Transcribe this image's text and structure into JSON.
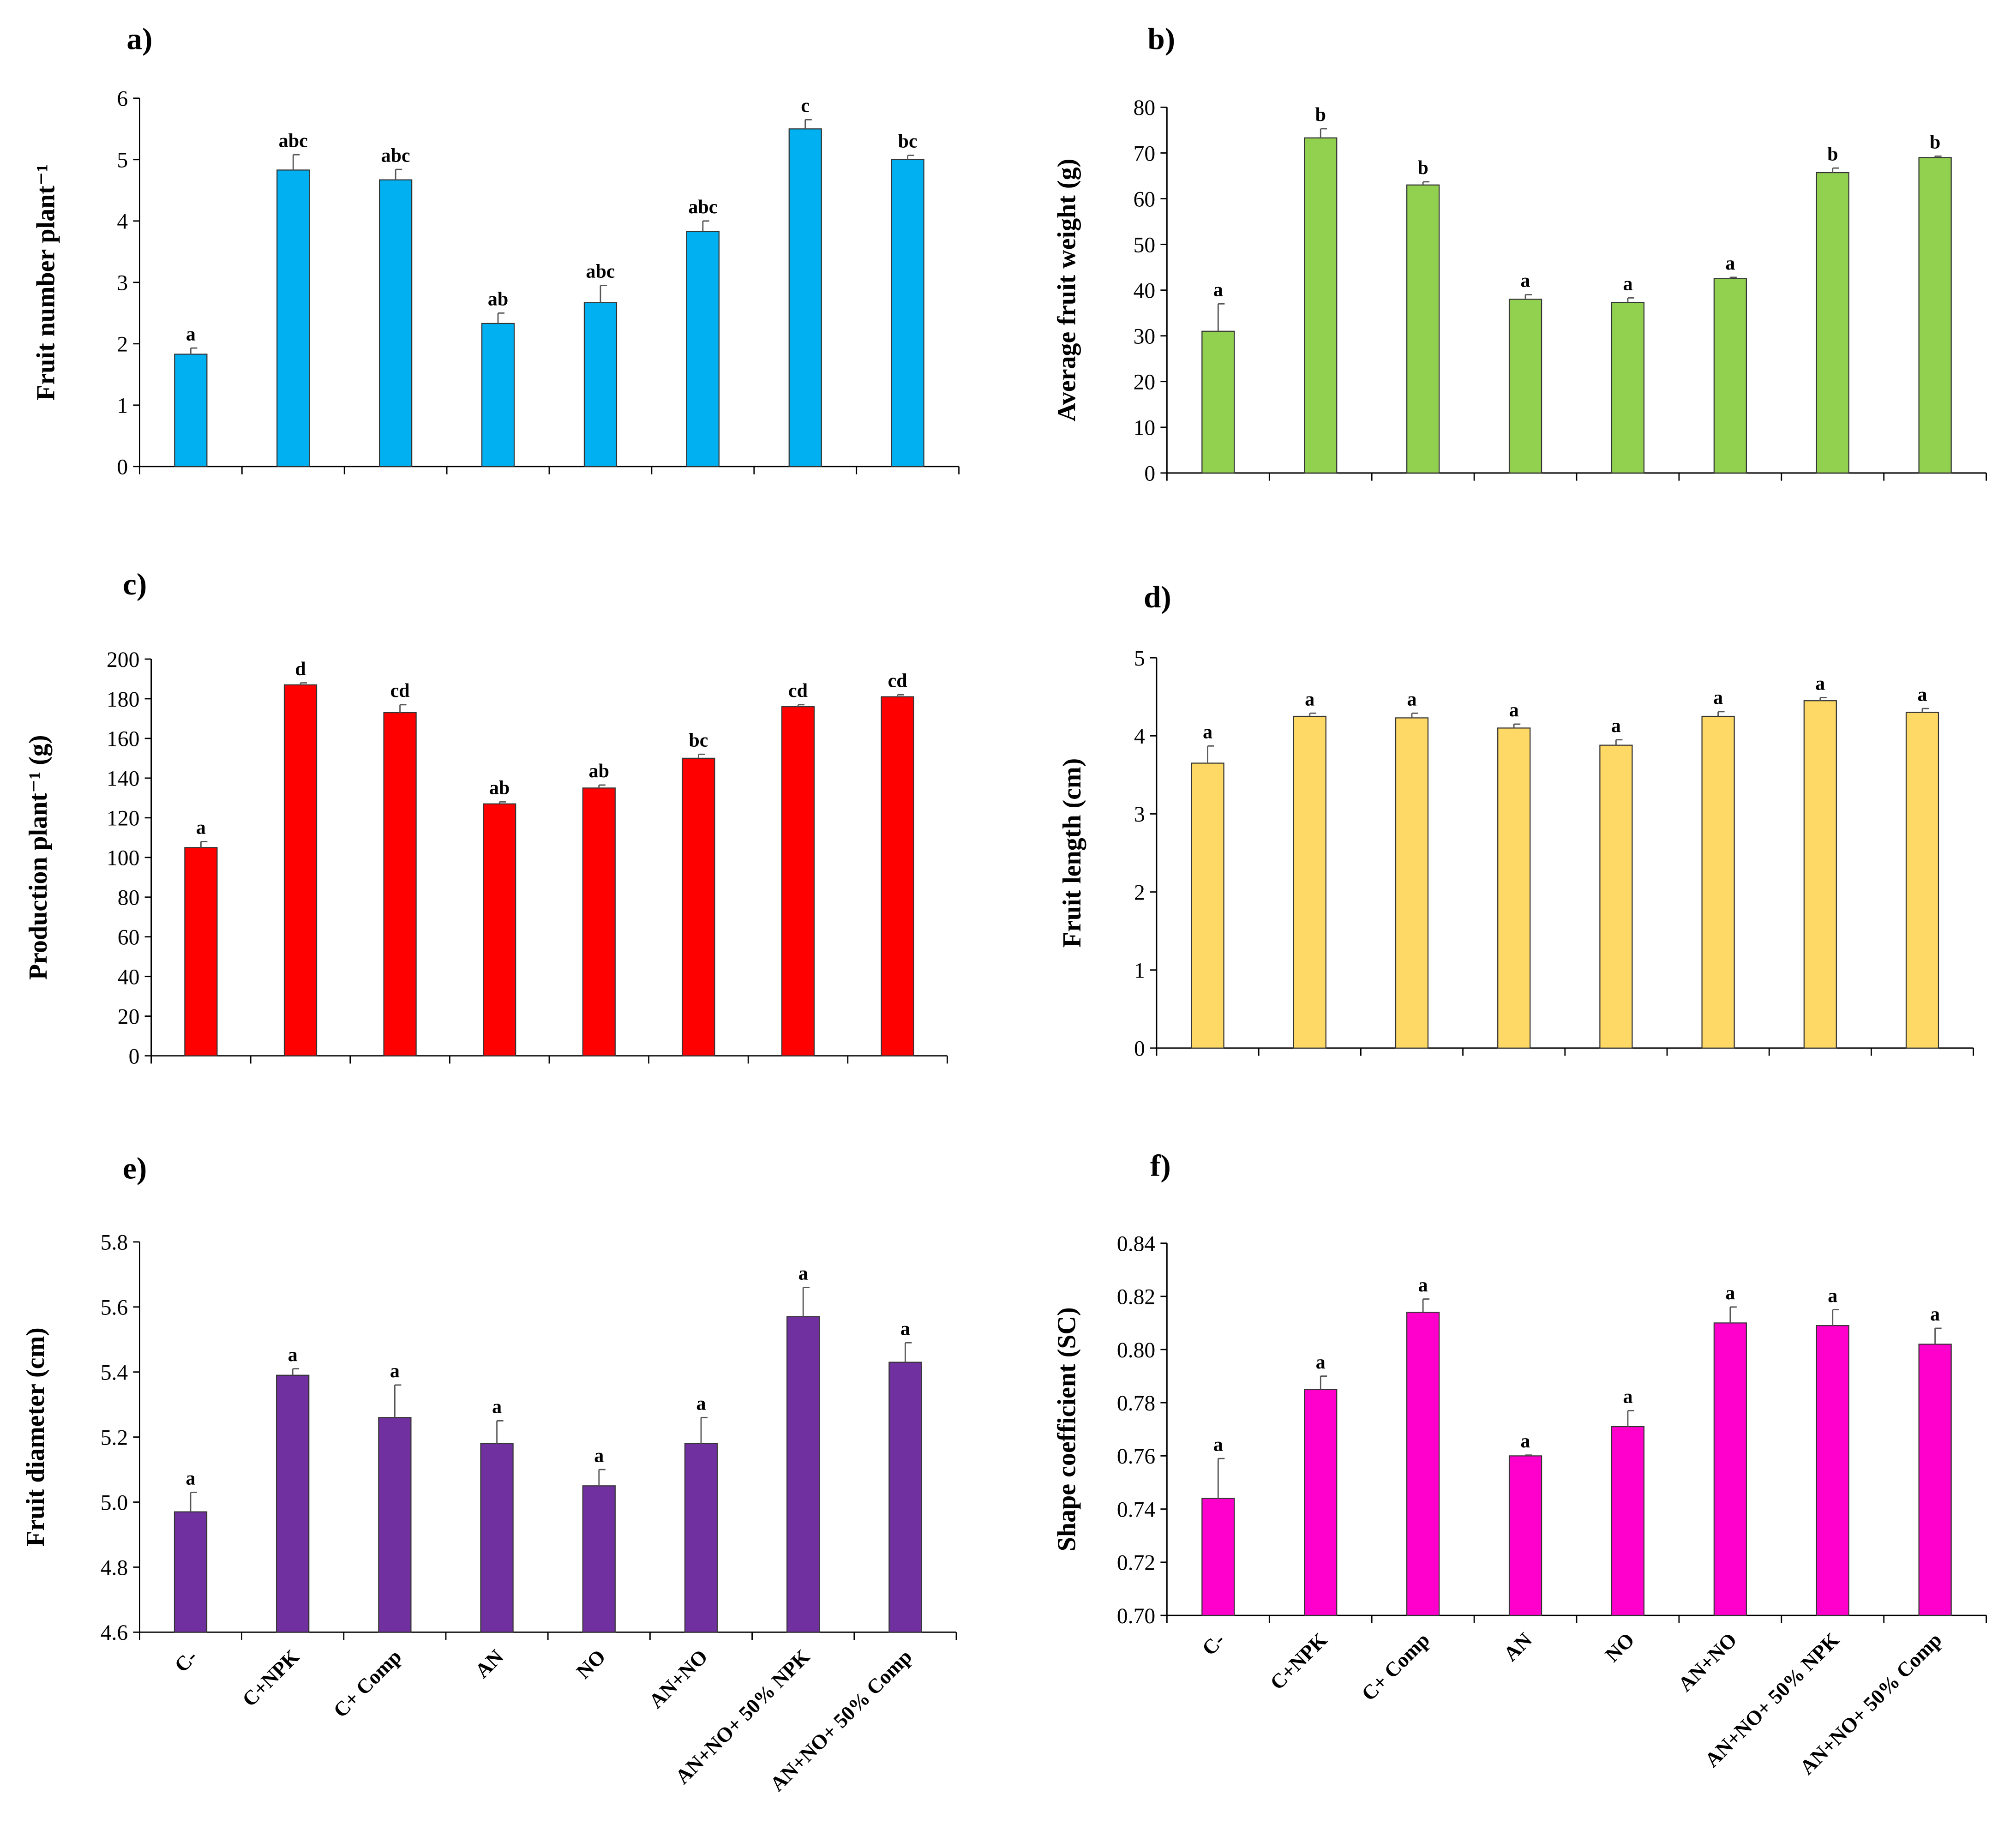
{
  "chart_data": [
    {
      "type": "bar",
      "panel": "a)",
      "ylabel": "Fruit number plant⁻¹",
      "ylim": [
        0,
        6
      ],
      "yticks": [
        "0",
        "1",
        "2",
        "3",
        "4",
        "5",
        "6"
      ],
      "ytick_values": [
        0,
        1,
        2,
        3,
        4,
        5,
        6
      ],
      "categories": [
        "C-",
        "C+NPK",
        "C+ Comp",
        "AN",
        "NO",
        "AN+NO",
        "AN+NO+ 50% NPK",
        "AN+NO+ 50% Comp"
      ],
      "values": [
        1.83,
        4.83,
        4.67,
        2.33,
        2.67,
        3.83,
        5.5,
        5.0
      ],
      "errors": [
        0.1,
        0.25,
        0.17,
        0.17,
        0.28,
        0.17,
        0.15,
        0.07
      ],
      "letters": [
        "a",
        "abc",
        "abc",
        "ab",
        "abc",
        "abc",
        "c",
        "bc"
      ],
      "color": "#00b0f0",
      "show_xlabels": false
    },
    {
      "type": "bar",
      "panel": "b)",
      "ylabel": "Average fruit weight (g)",
      "ylim": [
        0,
        80
      ],
      "yticks": [
        "0",
        "10",
        "20",
        "30",
        "40",
        "50",
        "60",
        "70",
        "80"
      ],
      "ytick_values": [
        0,
        10,
        20,
        30,
        40,
        50,
        60,
        70,
        80
      ],
      "categories": [
        "C-",
        "C+NPK",
        "C+ Comp",
        "AN",
        "NO",
        "AN+NO",
        "AN+NO+ 50% NPK",
        "AN+NO+ 50% Comp"
      ],
      "values": [
        31,
        73.3,
        63,
        38,
        37.3,
        42.5,
        65.7,
        69
      ],
      "errors": [
        6,
        2,
        0.7,
        1,
        1,
        0.3,
        1,
        0.3
      ],
      "letters": [
        "a",
        "b",
        "b",
        "a",
        "a",
        "a",
        "b",
        "b"
      ],
      "color": "#92d050",
      "show_xlabels": false
    },
    {
      "type": "bar",
      "panel": "c)",
      "ylabel": "Production plant⁻¹ (g)",
      "ylim": [
        0,
        200
      ],
      "yticks": [
        "0",
        "20",
        "40",
        "60",
        "80",
        "100",
        "120",
        "140",
        "160",
        "180",
        "200"
      ],
      "ytick_values": [
        0,
        20,
        40,
        60,
        80,
        100,
        120,
        140,
        160,
        180,
        200
      ],
      "categories": [
        "C-",
        "C+NPK",
        "C+ Comp",
        "AN",
        "NO",
        "AN+NO",
        "AN+NO+ 50% NPK",
        "AN+NO+ 50% Comp"
      ],
      "values": [
        105,
        187,
        173,
        127,
        135,
        150,
        176,
        181
      ],
      "errors": [
        3,
        1,
        4,
        1,
        1.5,
        2,
        1,
        1
      ],
      "letters": [
        "a",
        "d",
        "cd",
        "ab",
        "ab",
        "bc",
        "cd",
        "cd"
      ],
      "color": "#ff0000",
      "show_xlabels": false
    },
    {
      "type": "bar",
      "panel": "d)",
      "ylabel": "Fruit length (cm)",
      "ylim": [
        0,
        5
      ],
      "yticks": [
        "0",
        "1",
        "2",
        "3",
        "4",
        "5"
      ],
      "ytick_values": [
        0,
        1,
        2,
        3,
        4,
        5
      ],
      "categories": [
        "C-",
        "C+NPK",
        "C+ Comp",
        "AN",
        "NO",
        "AN+NO",
        "AN+NO+ 50% NPK",
        "AN+NO+ 50% Comp"
      ],
      "values": [
        3.65,
        4.25,
        4.23,
        4.1,
        3.88,
        4.25,
        4.45,
        4.3
      ],
      "errors": [
        0.22,
        0.04,
        0.06,
        0.05,
        0.07,
        0.06,
        0.04,
        0.05
      ],
      "letters": [
        "a",
        "a",
        "a",
        "a",
        "a",
        "a",
        "a",
        "a"
      ],
      "color": "#ffd966",
      "show_xlabels": false
    },
    {
      "type": "bar",
      "panel": "e)",
      "ylabel": "Fruit diameter (cm)",
      "ylim": [
        4.6,
        5.8
      ],
      "yticks": [
        "4.6",
        "4.8",
        "5.0",
        "5.2",
        "5.4",
        "5.6",
        "5.8"
      ],
      "ytick_values": [
        4.6,
        4.8,
        5.0,
        5.2,
        5.4,
        5.6,
        5.8
      ],
      "categories": [
        "C-",
        "C+NPK",
        "C+ Comp",
        "AN",
        "NO",
        "AN+NO",
        "AN+NO+ 50% NPK",
        "AN+NO+ 50% Comp"
      ],
      "values": [
        4.97,
        5.39,
        5.26,
        5.18,
        5.05,
        5.18,
        5.57,
        5.43
      ],
      "errors": [
        0.06,
        0.02,
        0.1,
        0.07,
        0.05,
        0.08,
        0.09,
        0.06
      ],
      "letters": [
        "a",
        "a",
        "a",
        "a",
        "a",
        "a",
        "a",
        "a"
      ],
      "color": "#7030a0",
      "show_xlabels": true
    },
    {
      "type": "bar",
      "panel": "f)",
      "ylabel": "Shape coefficient (SC)",
      "ylim": [
        0.7,
        0.84
      ],
      "yticks": [
        "0.70",
        "0.72",
        "0.74",
        "0.76",
        "0.78",
        "0.80",
        "0.82",
        "0.84"
      ],
      "ytick_values": [
        0.7,
        0.72,
        0.74,
        0.76,
        0.78,
        0.8,
        0.82,
        0.84
      ],
      "categories": [
        "C-",
        "C+NPK",
        "C+ Comp",
        "AN",
        "NO",
        "AN+NO",
        "AN+NO+ 50% NPK",
        "AN+NO+ 50% Comp"
      ],
      "values": [
        0.744,
        0.785,
        0.814,
        0.76,
        0.771,
        0.81,
        0.809,
        0.802
      ],
      "errors": [
        0.015,
        0.005,
        0.005,
        0.0003,
        0.006,
        0.006,
        0.006,
        0.006
      ],
      "letters": [
        "a",
        "a",
        "a",
        "a",
        "a",
        "a",
        "a",
        "a"
      ],
      "color": "#ff00cc",
      "show_xlabels": true
    }
  ]
}
